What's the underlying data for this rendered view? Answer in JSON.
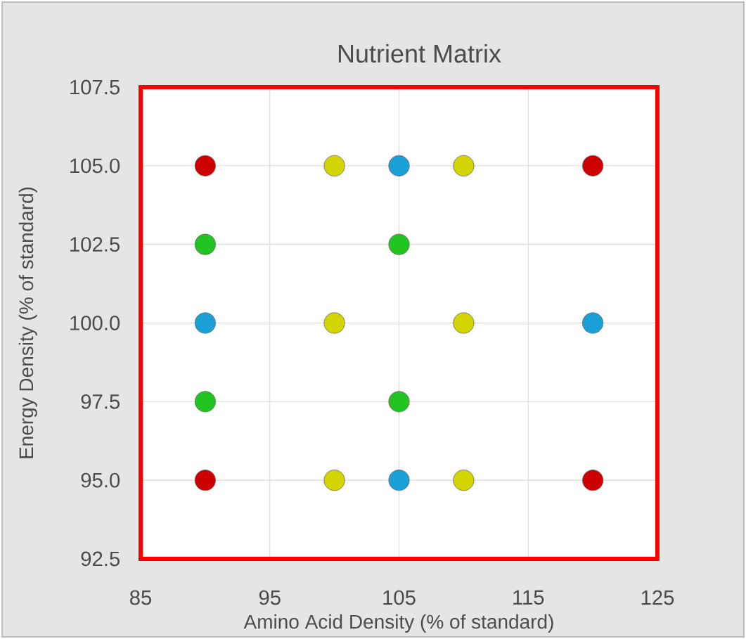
{
  "chart_data": {
    "type": "scatter",
    "title": "Nutrient Matrix",
    "xlabel": "Amino Acid Density (% of standard)",
    "ylabel": "Energy Density (% of standard)",
    "xlim": [
      85,
      125
    ],
    "xticks": [
      85,
      95,
      105,
      115,
      125
    ],
    "ylim": [
      92.5,
      107.5
    ],
    "yticks": [
      {
        "value": 92.5,
        "label": "92.5"
      },
      {
        "value": 95,
        "label": "95.0"
      },
      {
        "value": 97.5,
        "label": "97.5"
      },
      {
        "value": 100,
        "label": "100.0"
      },
      {
        "value": 102.5,
        "label": "102.5"
      },
      {
        "value": 105,
        "label": "105.0"
      },
      {
        "value": 107.5,
        "label": "107.5"
      }
    ],
    "grid": true,
    "marker": "circle",
    "series": [
      {
        "color": "#cc0000",
        "x": [
          90,
          120,
          90,
          120
        ],
        "values": [
          105,
          105,
          95,
          95
        ]
      },
      {
        "color": "#d4d400",
        "x": [
          100,
          110,
          100,
          110,
          100,
          110
        ],
        "values": [
          105,
          105,
          100,
          100,
          95,
          95
        ]
      },
      {
        "color": "#1a9fd6",
        "x": [
          105,
          90,
          120,
          105
        ],
        "values": [
          105,
          100,
          100,
          95
        ]
      },
      {
        "color": "#22c422",
        "x": [
          90,
          105,
          90,
          105
        ],
        "values": [
          102.5,
          102.5,
          97.5,
          97.5
        ]
      }
    ]
  }
}
